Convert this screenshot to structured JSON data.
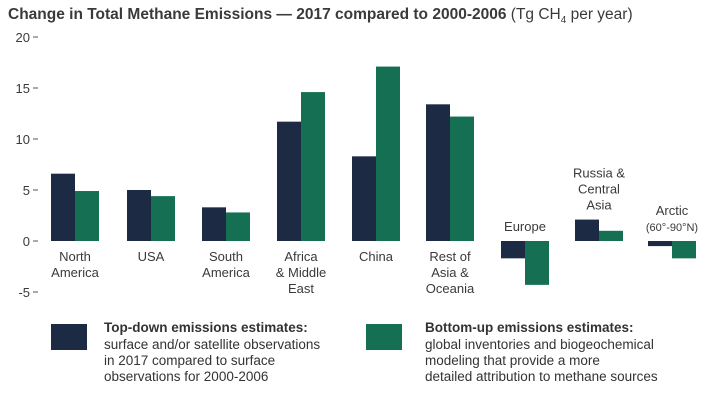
{
  "header": {
    "title_main": "Change in Total Methane Emissions — 2017 compared to 2000-2006",
    "title_units_prefix": "(Tg CH",
    "title_units_sub": "4",
    "title_units_suffix": " per year)"
  },
  "chart_data": {
    "type": "bar",
    "title": "Change in Total Methane Emissions — 2017 compared to 2000-2006 (Tg CH4 per year)",
    "ylabel": "Tg CH4 per year",
    "ylim": [
      -5,
      20
    ],
    "yticks": [
      20,
      15,
      10,
      5,
      0,
      -5
    ],
    "ytick_labels": [
      "20",
      "15",
      "10",
      "5",
      "0",
      "-5"
    ],
    "categories": [
      "North America",
      "USA",
      "South America",
      "Africa & Middle East",
      "China",
      "Rest of Asia & Oceania",
      "Europe",
      "Russia & Central Asia",
      "Arctic (60°-90°N)"
    ],
    "category_labels": [
      [
        "North",
        "America"
      ],
      [
        "USA"
      ],
      [
        "South",
        "America"
      ],
      [
        "Africa",
        "& Middle",
        "East"
      ],
      [
        "China"
      ],
      [
        "Rest of",
        "Asia &",
        "Oceania"
      ],
      [
        "Europe"
      ],
      [
        "Russia &",
        "Central",
        "Asia"
      ],
      [
        "Arctic",
        "(60°-90°N)"
      ]
    ],
    "series": [
      {
        "name": "Top-down emissions estimates",
        "color": "#1c2a43",
        "values": [
          6.6,
          5.0,
          3.3,
          11.7,
          8.3,
          13.4,
          -1.7,
          2.1,
          -0.5
        ]
      },
      {
        "name": "Bottom-up emissions estimates",
        "color": "#146f53",
        "values": [
          4.9,
          4.4,
          2.8,
          14.6,
          17.1,
          12.2,
          -4.3,
          1.0,
          -1.7
        ]
      }
    ]
  },
  "legend": {
    "top_down": {
      "heading": "Top-down emissions estimates:",
      "lines": [
        "surface and/or satellite observations",
        "in 2017 compared to surface",
        "observations for 2000-2006"
      ]
    },
    "bottom_up": {
      "heading": "Bottom-up emissions estimates:",
      "lines": [
        "global inventories and biogeochemical",
        "modeling that provide a more",
        "detailed attribution to methane sources"
      ]
    }
  }
}
